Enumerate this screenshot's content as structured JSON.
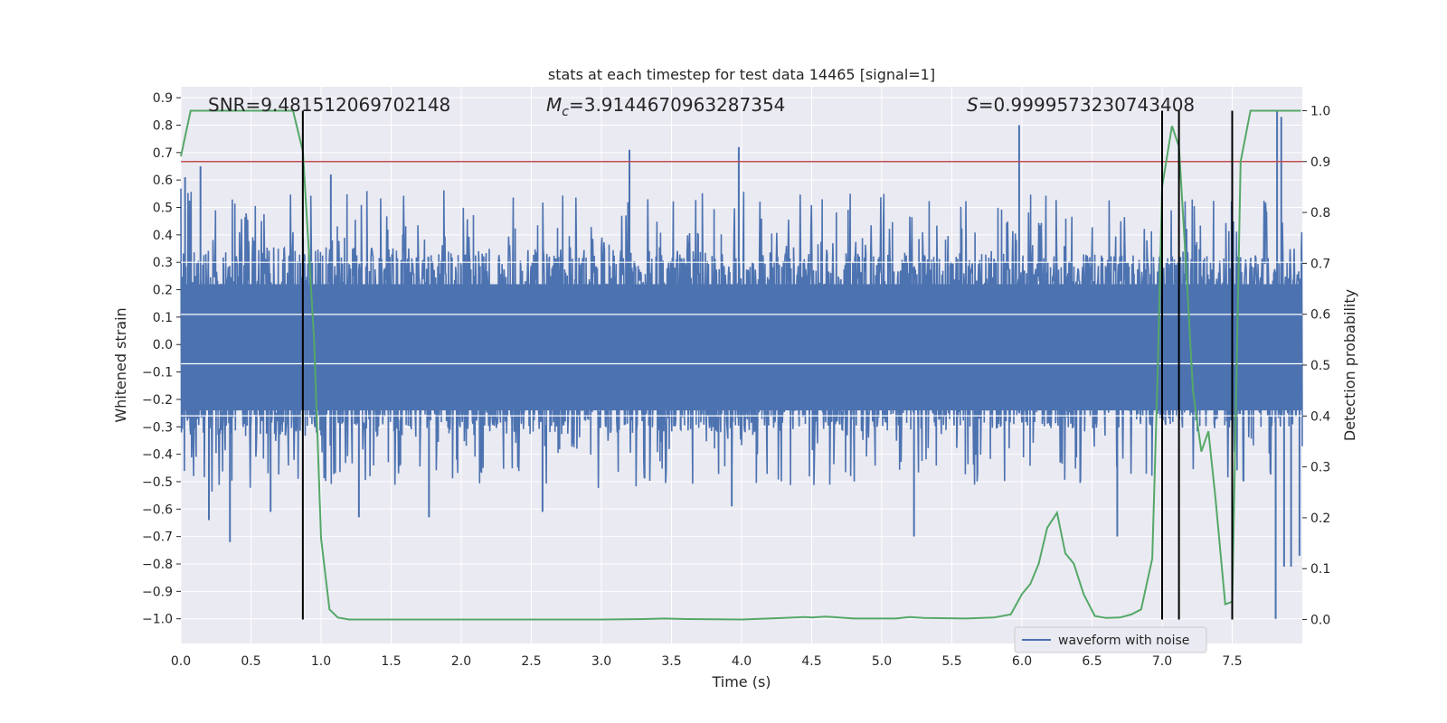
{
  "chart_data": {
    "type": "line",
    "title": "stats at each timestep for test data 14465 [signal=1]",
    "xlabel": "Time (s)",
    "ylabel": "Whitened strain",
    "y2label": "Detection probability",
    "xlim": [
      0.0,
      8.0
    ],
    "ylim": [
      -1.09,
      0.94
    ],
    "y2lim": [
      -0.047,
      1.047
    ],
    "xticks": [
      0.0,
      0.5,
      1.0,
      1.5,
      2.0,
      2.5,
      3.0,
      3.5,
      4.0,
      4.5,
      5.0,
      5.5,
      6.0,
      6.5,
      7.0,
      7.5
    ],
    "xtick_labels": [
      "0.0",
      "0.5",
      "1.0",
      "1.5",
      "2.0",
      "2.5",
      "3.0",
      "3.5",
      "4.0",
      "4.5",
      "5.0",
      "5.5",
      "6.0",
      "6.5",
      "7.0",
      "7.5"
    ],
    "yticks": [
      -1.0,
      -0.9,
      -0.8,
      -0.7,
      -0.6,
      -0.5,
      -0.4,
      -0.3,
      -0.2,
      -0.1,
      0.0,
      0.1,
      0.2,
      0.3,
      0.4,
      0.5,
      0.6,
      0.7,
      0.8,
      0.9
    ],
    "ytick_labels": [
      "−1.0",
      "−0.9",
      "−0.8",
      "−0.7",
      "−0.6",
      "−0.5",
      "−0.4",
      "−0.3",
      "−0.2",
      "−0.1",
      "0.0",
      "0.1",
      "0.2",
      "0.3",
      "0.4",
      "0.5",
      "0.6",
      "0.7",
      "0.8",
      "0.9"
    ],
    "y2ticks": [
      0.0,
      0.1,
      0.2,
      0.3,
      0.4,
      0.5,
      0.6,
      0.7,
      0.8,
      0.9,
      1.0
    ],
    "y2tick_labels": [
      "0.0",
      "0.1",
      "0.2",
      "0.3",
      "0.4",
      "0.5",
      "0.6",
      "0.7",
      "0.8",
      "0.9",
      "1.0"
    ],
    "annotations": {
      "snr": "SNR=9.481512069702148",
      "mc_symbol": "M",
      "mc_subscript": "c",
      "mc_value": "=3.9144670963287354",
      "s_symbol": "S",
      "s_value": "=0.9999573230743408"
    },
    "legend": {
      "label": "waveform with noise",
      "placement": "lower-right"
    },
    "threshold_line": {
      "axis": "y2",
      "value": 0.9,
      "color": "#c44e52"
    },
    "vertical_lines": [
      0.87,
      7.0,
      7.12,
      7.5
    ],
    "waveform": {
      "name": "waveform with noise",
      "color": "#4c72b0",
      "envelope_pos": [
        0.36,
        0.32
      ],
      "envelope_neg": [
        -0.34,
        -0.3
      ],
      "peaks": [
        {
          "x": 0.03,
          "y": 0.61
        },
        {
          "x": 0.14,
          "y": 0.65
        },
        {
          "x": 0.35,
          "y": -0.72
        },
        {
          "x": 0.2,
          "y": -0.64
        },
        {
          "x": 0.64,
          "y": -0.61
        },
        {
          "x": 1.07,
          "y": 0.62
        },
        {
          "x": 1.27,
          "y": -0.63
        },
        {
          "x": 1.77,
          "y": -0.63
        },
        {
          "x": 2.58,
          "y": -0.61
        },
        {
          "x": 3.2,
          "y": 0.71
        },
        {
          "x": 3.98,
          "y": 0.72
        },
        {
          "x": 3.93,
          "y": -0.59
        },
        {
          "x": 5.23,
          "y": -0.7
        },
        {
          "x": 5.98,
          "y": 0.8
        },
        {
          "x": 6.68,
          "y": -0.7
        },
        {
          "x": 7.82,
          "y": 0.85
        },
        {
          "x": 7.85,
          "y": 0.83
        },
        {
          "x": 7.81,
          "y": -1.0
        },
        {
          "x": 7.87,
          "y": -0.81
        },
        {
          "x": 7.92,
          "y": -0.81
        },
        {
          "x": 7.98,
          "y": -0.77
        }
      ]
    },
    "probability": {
      "name": "detection probability",
      "color": "#55a868",
      "x": [
        0.0,
        0.07,
        0.5,
        0.8,
        0.87,
        0.95,
        1.0,
        1.06,
        1.12,
        1.2,
        1.5,
        2.0,
        2.5,
        3.0,
        3.3,
        3.45,
        3.6,
        4.0,
        4.3,
        4.45,
        4.5,
        4.6,
        4.8,
        5.1,
        5.2,
        5.3,
        5.6,
        5.8,
        5.92,
        6.0,
        6.06,
        6.12,
        6.18,
        6.25,
        6.31,
        6.37,
        6.44,
        6.52,
        6.6,
        6.7,
        6.78,
        6.85,
        6.93,
        6.97,
        7.0,
        7.07,
        7.12,
        7.17,
        7.22,
        7.28,
        7.33,
        7.38,
        7.45,
        7.5,
        7.56,
        7.63,
        7.8,
        7.99
      ],
      "y": [
        0.91,
        1.0,
        1.0,
        1.0,
        0.92,
        0.55,
        0.16,
        0.02,
        0.004,
        0.0,
        0.0,
        0.0,
        0.0,
        0.0,
        0.001,
        0.002,
        0.001,
        0.0,
        0.003,
        0.005,
        0.004,
        0.006,
        0.002,
        0.002,
        0.005,
        0.003,
        0.002,
        0.004,
        0.01,
        0.05,
        0.07,
        0.11,
        0.18,
        0.21,
        0.13,
        0.11,
        0.05,
        0.007,
        0.003,
        0.004,
        0.01,
        0.02,
        0.12,
        0.5,
        0.85,
        0.97,
        0.93,
        0.7,
        0.45,
        0.33,
        0.37,
        0.24,
        0.03,
        0.035,
        0.9,
        1.0,
        1.0,
        1.0
      ]
    }
  }
}
